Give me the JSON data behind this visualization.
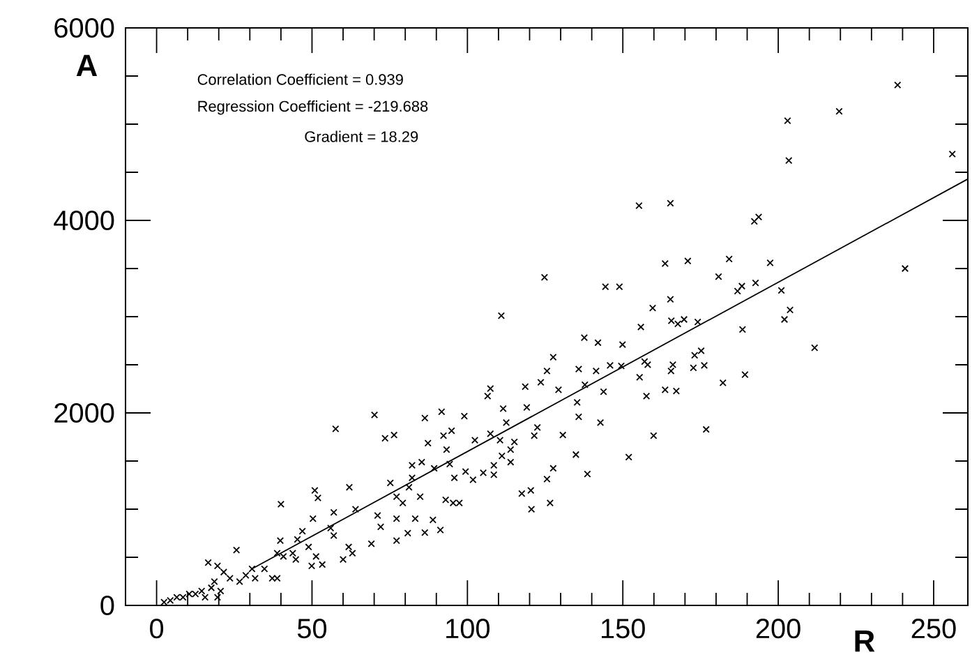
{
  "chart_data": {
    "type": "scatter",
    "xlabel": "R",
    "ylabel": "A",
    "annotations": [
      "Correlation Coefficient = 0.939",
      "Regression Coefficient = -219.688",
      "Gradient = 18.29"
    ],
    "xlim": [
      -10,
      261
    ],
    "ylim": [
      0,
      6000
    ],
    "xticks": [
      0,
      {
        "value": 10,
        "label": null
      },
      {
        "value": 20,
        "label": null
      },
      {
        "value": 30,
        "label": null
      },
      {
        "value": 40,
        "label": null
      },
      50,
      {
        "value": 60,
        "label": null
      },
      {
        "value": 70,
        "label": null
      },
      {
        "value": 80,
        "label": null
      },
      {
        "value": 90,
        "label": null
      },
      100,
      {
        "value": 110,
        "label": null
      },
      {
        "value": 120,
        "label": null
      },
      {
        "value": 130,
        "label": null
      },
      {
        "value": 140,
        "label": null
      },
      150,
      {
        "value": 160,
        "label": null
      },
      {
        "value": 170,
        "label": null
      },
      {
        "value": 180,
        "label": null
      },
      {
        "value": 190,
        "label": null
      },
      200,
      {
        "value": 210,
        "label": null
      },
      {
        "value": 220,
        "label": null
      },
      {
        "value": 230,
        "label": null
      },
      {
        "value": 240,
        "label": null
      },
      250
    ],
    "yticks": [
      0,
      {
        "value": 500,
        "label": null
      },
      {
        "value": 1000,
        "label": null
      },
      {
        "value": 1500,
        "label": null
      },
      2000,
      {
        "value": 2500,
        "label": null
      },
      {
        "value": 3000,
        "label": null
      },
      {
        "value": 3500,
        "label": null
      },
      4000,
      {
        "value": 4500,
        "label": null
      },
      {
        "value": 5000,
        "label": null
      },
      {
        "value": 5500,
        "label": null
      },
      6000
    ],
    "grid": false,
    "legend": false,
    "marker": "cross",
    "series": [
      {
        "color": "#000000",
        "x": [
          238.4,
          219.6,
          203.0,
          203.4,
          256,
          240.8,
          211.7,
          155.2,
          165.3,
          192.3,
          193.7,
          124.8,
          110.9,
          144.4,
          148.9,
          163.6,
          170.9,
          184.2,
          197.4,
          180.8,
          186.9,
          188.3,
          192.7,
          201.0,
          202.0,
          203.8,
          165.3,
          159.6,
          155.8,
          165.6,
          167.7,
          169.7,
          174.1,
          188.5,
          137.6,
          142.0,
          149.9,
          151.9,
          159.9,
          176.8,
          182.2,
          189.3,
          172.7,
          175.2,
          176.2,
          173.1,
          165.5,
          166.1,
          167.2,
          163.6,
          157.6,
          157.0,
          158.0,
          155.4,
          145.9,
          149.5,
          135.8,
          141.4,
          127.6,
          125.6,
          123.6,
          129.3,
          137.8,
          143.8,
          135.3,
          142.8,
          135.8,
          130.7,
          134.9,
          138.6,
          127.6,
          125.6,
          126.6,
          120.6,
          120.4,
          117.5,
          122.5,
          121.5,
          119.1,
          118.6,
          111.5,
          112.5,
          107.4,
          106.5,
          107.4,
          110.5,
          111.1,
          108.5,
          108.5,
          105.1,
          113.9,
          113.9,
          115.1,
          102.4,
          99.0,
          91.7,
          94.9,
          92.3,
          87.3,
          86.3,
          93.3,
          94.3,
          95.8,
          89.3,
          85.3,
          82.2,
          82.2,
          99.4,
          101.8,
          97.4,
          95.4,
          93.0,
          91.3,
          86.3,
          88.9,
          84.8,
          83.2,
          80.8,
          77.2,
          77.2,
          77.2,
          81.2,
          75.2,
          79.2,
          71.1,
          72.1,
          69.1,
          70.1,
          73.5,
          76.4,
          57.6,
          62.0,
          64.0,
          57.0,
          56.0,
          61.8,
          63.0,
          60.0,
          57.0,
          50.9,
          51.9,
          50.3,
          46.9,
          45.3,
          43.8,
          44.8,
          48.9,
          51.3,
          49.9,
          53.3,
          40.0,
          39.8,
          38.8,
          40.8,
          37.2,
          38.8,
          34.7,
          31.7,
          30.7,
          28.7,
          25.7,
          26.7,
          23.6,
          21.6,
          19.6,
          16.6,
          18.6,
          17.6,
          14.5,
          12.5,
          10.5,
          8.5,
          6.5,
          4.4,
          2.4,
          20.6,
          15.6,
          19.6
        ],
        "values": [
          5407,
          5133,
          5035,
          4623,
          4689,
          3500,
          2677,
          4153,
          4179,
          3990,
          4036,
          3409,
          3010,
          3311,
          3311,
          3552,
          3578,
          3598,
          3559,
          3415,
          3265,
          3317,
          3350,
          3272,
          2971,
          3069,
          3180,
          3089,
          2893,
          2958,
          2925,
          2971,
          2945,
          2867,
          2782,
          2730,
          2710,
          1541,
          1763,
          1828,
          2312,
          2397,
          2468,
          2645,
          2494,
          2599,
          2436,
          2501,
          2227,
          2240,
          2175,
          2534,
          2501,
          2370,
          2494,
          2488,
          2455,
          2436,
          2579,
          2436,
          2318,
          2240,
          2292,
          2220,
          2109,
          1900,
          1959,
          1770,
          1567,
          1365,
          1424,
          1313,
          1064,
          999,
          1195,
          1162,
          1848,
          1763,
          2057,
          2273,
          2044,
          1900,
          2253,
          2175,
          1783,
          1717,
          1554,
          1456,
          1358,
          1378,
          1489,
          1619,
          1698,
          1717,
          1966,
          2011,
          1815,
          1763,
          1685,
          1946,
          1619,
          1469,
          1326,
          1424,
          1489,
          1456,
          1326,
          1391,
          1306,
          1064,
          1064,
          1097,
          784,
          757,
          888,
          1130,
          901,
          751,
          673,
          901,
          1130,
          1228,
          1273,
          1064,
          934,
          816,
          640,
          1979,
          1737,
          1770,
          1835,
          1228,
          999,
          966,
          803,
          607,
          542,
          477,
          725,
          1195,
          1117,
          901,
          771,
          686,
          542,
          477,
          607,
          509,
          411,
          424,
          1051,
          673,
          542,
          509,
          281,
          281,
          379,
          281,
          379,
          313,
          575,
          248,
          281,
          346,
          411,
          444,
          248,
          183,
          150,
          118,
          118,
          85,
          85,
          52,
          33,
          150,
          85,
          85
        ]
      },
      {
        "type": "line",
        "marker": "none",
        "color": "#000000",
        "x": [
          30.7,
          261
        ],
        "values": [
          380,
          4430
        ]
      }
    ]
  }
}
